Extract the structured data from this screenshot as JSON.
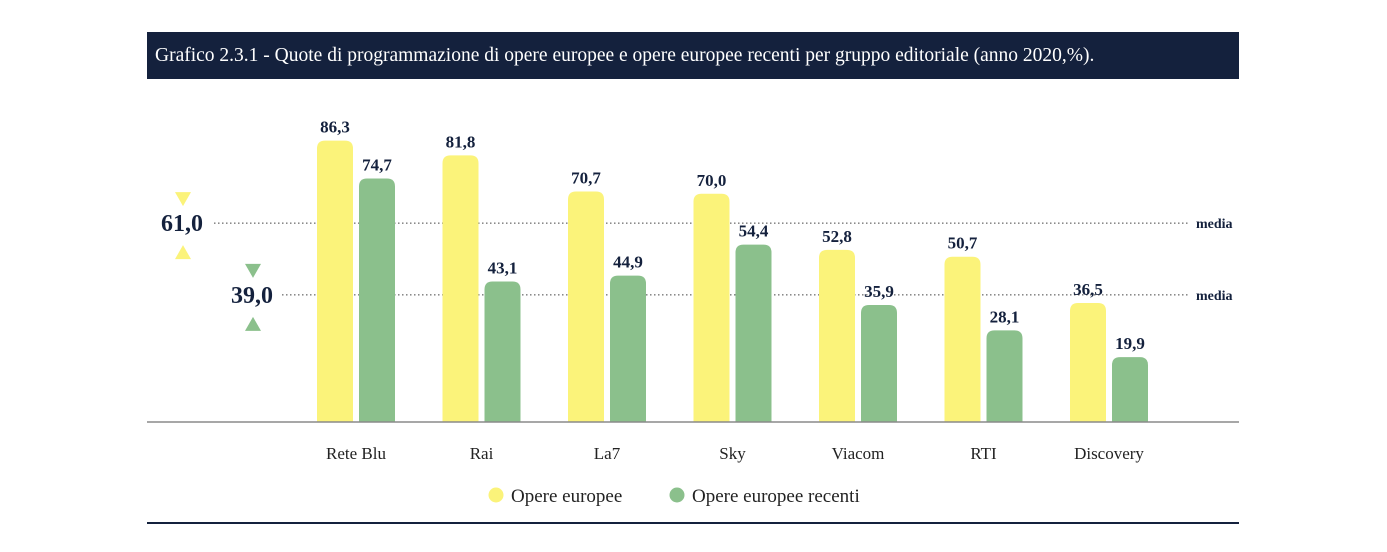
{
  "chart_data": {
    "type": "bar",
    "title": "Grafico 2.3.1 - Quote di programmazione di opere europee e opere europee recenti per gruppo editoriale (anno 2020,%).",
    "categories": [
      "Rete Blu",
      "Rai",
      "La7",
      "Sky",
      "Viacom",
      "RTI",
      "Discovery"
    ],
    "series": [
      {
        "name": "Opere europee",
        "color": "#fbf37a",
        "values": [
          86.3,
          81.8,
          70.7,
          70.0,
          52.8,
          50.7,
          36.5
        ],
        "labels": [
          "86,3",
          "81,8",
          "70,7",
          "70,0",
          "52,8",
          "50,7",
          "36,5"
        ]
      },
      {
        "name": "Opere europee recenti",
        "color": "#8bc08c",
        "values": [
          74.7,
          43.1,
          44.9,
          54.4,
          35.9,
          28.1,
          19.9
        ],
        "labels": [
          "74,7",
          "43,1",
          "44,9",
          "54,4",
          "35,9",
          "28,1",
          "19,9"
        ]
      }
    ],
    "averages": [
      {
        "series": "Opere europee",
        "value": 61.0,
        "label": "61,0",
        "note": "media",
        "color": "#fbf37a"
      },
      {
        "series": "Opere europee recenti",
        "value": 39.0,
        "label": "39,0",
        "note": "media",
        "color": "#8bc08c"
      }
    ],
    "ylim": [
      0,
      100
    ],
    "xlabel": "",
    "ylabel": "",
    "grid": false,
    "legend": "bottom-center"
  }
}
